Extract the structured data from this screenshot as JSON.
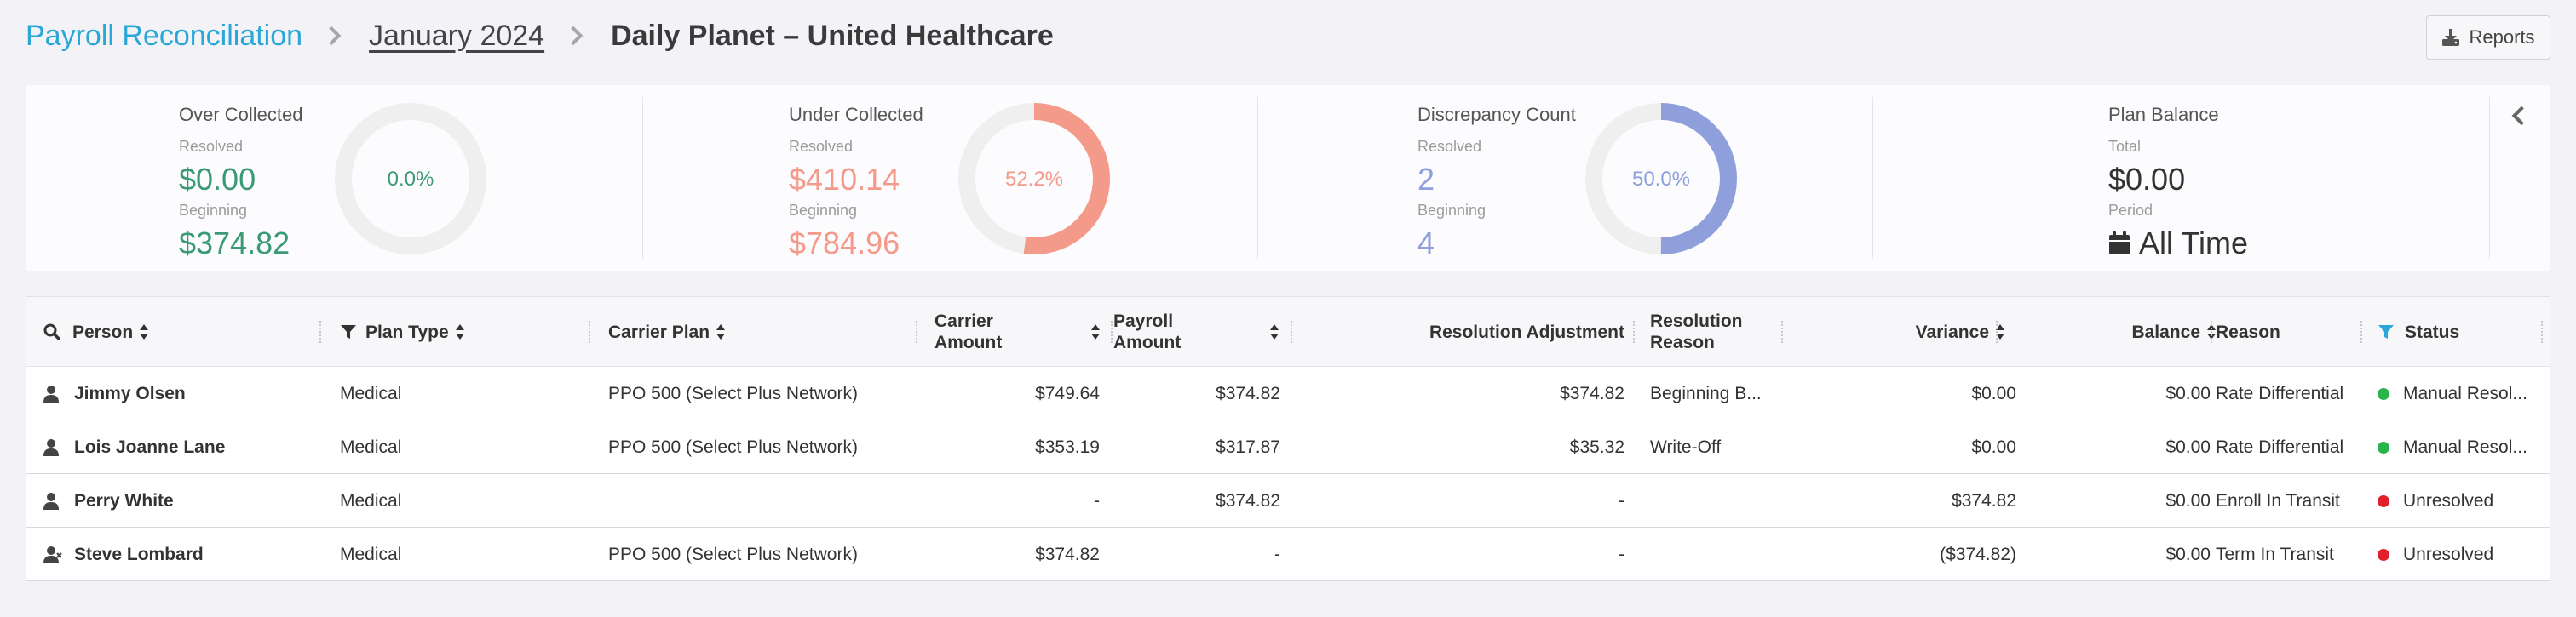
{
  "breadcrumb": {
    "root": "Payroll Reconciliation",
    "month": "January 2024",
    "current": "Daily Planet – United Healthcare"
  },
  "toolbar": {
    "reports_label": "Reports"
  },
  "summary": {
    "over_collected": {
      "title": "Over Collected",
      "resolved_label": "Resolved",
      "resolved_value": "$0.00",
      "beginning_label": "Beginning",
      "beginning_value": "$374.82",
      "percent_label": "0.0%",
      "percent": 0.0,
      "color": "#3a9a74"
    },
    "under_collected": {
      "title": "Under Collected",
      "resolved_label": "Resolved",
      "resolved_value": "$410.14",
      "beginning_label": "Beginning",
      "beginning_value": "$784.96",
      "percent_label": "52.2%",
      "percent": 52.2,
      "color": "#f49a8a"
    },
    "discrepancy_count": {
      "title": "Discrepancy Count",
      "resolved_label": "Resolved",
      "resolved_value": "2",
      "beginning_label": "Beginning",
      "beginning_value": "4",
      "percent_label": "50.0%",
      "percent": 50.0,
      "color": "#8f9fdb"
    },
    "plan_balance": {
      "title": "Plan Balance",
      "total_label": "Total",
      "total_value": "$0.00",
      "period_label": "Period",
      "period_value": "All Time"
    }
  },
  "table": {
    "headers": {
      "person": "Person",
      "plan_type": "Plan Type",
      "carrier_plan": "Carrier Plan",
      "carrier_amount_1": "Carrier",
      "carrier_amount_2": "Amount",
      "payroll_amount_1": "Payroll",
      "payroll_amount_2": "Amount",
      "resolution_adjustment": "Resolution Adjustment",
      "resolution_reason_1": "Resolution",
      "resolution_reason_2": "Reason",
      "variance": "Variance",
      "balance": "Balance",
      "reason": "Reason",
      "status": "Status"
    },
    "rows": [
      {
        "person": "Jimmy Olsen",
        "person_icon": "person-icon",
        "plan_type": "Medical",
        "carrier_plan": "PPO 500 (Select Plus Network)",
        "carrier_amount": "$749.64",
        "payroll_amount": "$374.82",
        "resolution_adjustment": "$374.82",
        "resolution_reason": "Beginning B...",
        "variance": "$0.00",
        "balance": "$0.00",
        "reason": "Rate Differential",
        "status": "Manual Resol...",
        "status_color": "#2bb44a"
      },
      {
        "person": "Lois Joanne Lane",
        "person_icon": "person-icon",
        "plan_type": "Medical",
        "carrier_plan": "PPO 500 (Select Plus Network)",
        "carrier_amount": "$353.19",
        "payroll_amount": "$317.87",
        "resolution_adjustment": "$35.32",
        "resolution_reason": "Write-Off",
        "variance": "$0.00",
        "balance": "$0.00",
        "reason": "Rate Differential",
        "status": "Manual Resol...",
        "status_color": "#2bb44a"
      },
      {
        "person": "Perry White",
        "person_icon": "person-icon",
        "plan_type": "Medical",
        "carrier_plan": "",
        "carrier_amount": "-",
        "payroll_amount": "$374.82",
        "resolution_adjustment": "-",
        "resolution_reason": "",
        "variance": "$374.82",
        "balance": "$0.00",
        "reason": "Enroll In Transit",
        "status": "Unresolved",
        "status_color": "#e0202c"
      },
      {
        "person": "Steve Lombard",
        "person_icon": "person-x-icon",
        "plan_type": "Medical",
        "carrier_plan": "PPO 500 (Select Plus Network)",
        "carrier_amount": "$374.82",
        "payroll_amount": "-",
        "resolution_adjustment": "-",
        "resolution_reason": "",
        "variance": "($374.82)",
        "balance": "$0.00",
        "reason": "Term In Transit",
        "status": "Unresolved",
        "status_color": "#e0202c"
      }
    ]
  }
}
